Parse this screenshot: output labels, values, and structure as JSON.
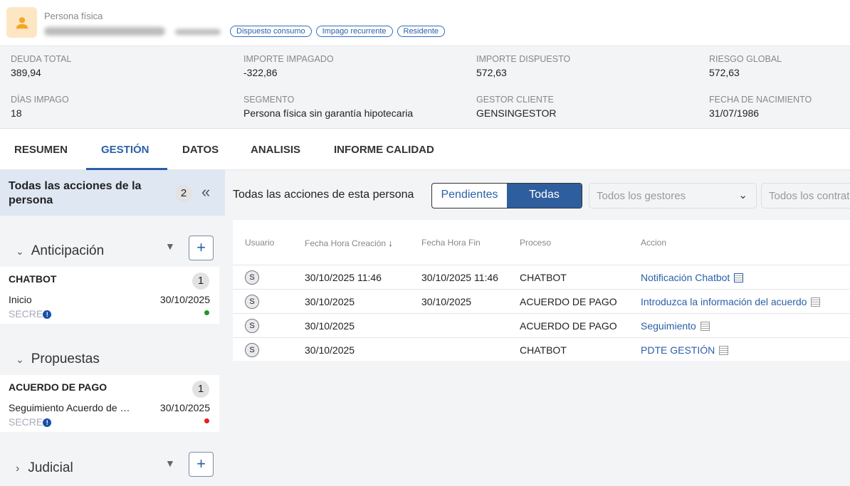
{
  "header": {
    "person_type": "Persona física",
    "tags": [
      "Dispuesto consumo",
      "Impago recurrente",
      "Residente"
    ]
  },
  "kpis": [
    {
      "label": "DEUDA TOTAL",
      "value": "389,94"
    },
    {
      "label": "IMPORTE IMPAGADO",
      "value": "-322,86"
    },
    {
      "label": "IMPORTE DISPUESTO",
      "value": "572,63"
    },
    {
      "label": "RIESGO GLOBAL",
      "value": "572,63"
    },
    {
      "label": "DÍAS IMPAGO",
      "value": "18"
    },
    {
      "label": "SEGMENTO",
      "value": "Persona física sin garantía hipotecaria"
    },
    {
      "label": "GESTOR CLIENTE",
      "value": "GENSINGESTOR"
    },
    {
      "label": "FECHA DE NACIMIENTO",
      "value": "31/07/1986"
    }
  ],
  "tabs": [
    "RESUMEN",
    "GESTIÓN",
    "DATOS",
    "ANALISIS",
    "INFORME CALIDAD"
  ],
  "sidebar": {
    "title": "Todas las acciones de la persona",
    "count": "2",
    "collapse_icon": "double-chevron-left",
    "groups": [
      {
        "name": "Anticipación",
        "card": {
          "title": "CHATBOT",
          "count": "1",
          "step": "Inicio",
          "date": "30/10/2025",
          "user": "SECRE",
          "status_color": "#1a9a2a"
        }
      },
      {
        "name": "Propuestas",
        "card": {
          "title": "ACUERDO DE PAGO",
          "count": "1",
          "step": "Seguimiento Acuerdo de …",
          "date": "30/10/2025",
          "user": "SECRE",
          "status_color": "#e02020"
        }
      },
      {
        "name": "Judicial"
      }
    ]
  },
  "main": {
    "title": "Todas las acciones de esta persona",
    "toggle": [
      "Pendientes",
      "Todas"
    ],
    "selected": "Todas",
    "gestores_placeholder": "Todos los gestores",
    "contratos_placeholder": "Todos los contratos",
    "columns": [
      "Usuario",
      "Fecha Hora Creación",
      "Fecha Hora Fin",
      "Proceso",
      "Accion"
    ],
    "rows": [
      {
        "user": "S",
        "created": "30/10/2025 11:46",
        "end": "30/10/2025 11:46",
        "process": "CHATBOT",
        "action": "Notificación Chatbot"
      },
      {
        "user": "S",
        "created": "30/10/2025",
        "end": "30/10/2025",
        "process": "ACUERDO DE PAGO",
        "action": "Introduzca la información del acuerdo"
      },
      {
        "user": "S",
        "created": "30/10/2025",
        "end": "",
        "process": "ACUERDO DE PAGO",
        "action": "Seguimiento"
      },
      {
        "user": "S",
        "created": "30/10/2025",
        "end": "",
        "process": "CHATBOT",
        "action": "PDTE GESTIÓN"
      }
    ]
  }
}
